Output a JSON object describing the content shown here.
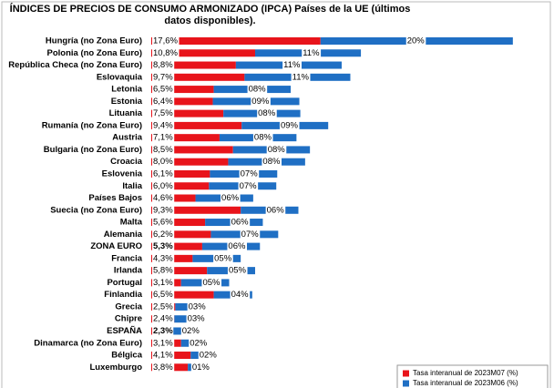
{
  "chart_data": {
    "type": "stacked-hbar",
    "title": "ÍNDICES DE PRECIOS DE CONSUMO ARMONIZADO (IPCA) Países de la UE (últimos datos disponibles).",
    "categories": [
      "Hungría (no Zona Euro)",
      "Polonia (no Zona Euro)",
      "República Checa (no Zona Euro)",
      "Eslovaquia",
      "Letonia",
      "Estonia",
      "Lituania",
      "Rumanía (no Zona Euro)",
      "Austria",
      "Bulgaria (no Zona Euro)",
      "Croacia",
      "Eslovenia",
      "Italia",
      "Países Bajos",
      "Suecia (no Zona Euro)",
      "Malta",
      "Alemania",
      "ZONA EURO",
      "Francia",
      "Irlanda",
      "Portugal",
      "Finlandia",
      "Grecia",
      "Chipre",
      "ESPAÑA",
      "Dinamarca (no Zona Euro)",
      "Bélgica",
      "Luxemburgo"
    ],
    "series": [
      {
        "name": "Tasa interanual de 2023M07 (%)",
        "color": "#e8141b",
        "values": [
          17.6,
          10.8,
          8.8,
          9.7,
          6.5,
          6.4,
          7.5,
          9.4,
          7.1,
          8.5,
          8.0,
          6.1,
          6.0,
          4.6,
          9.3,
          5.6,
          6.2,
          5.3,
          4.3,
          5.8,
          3.1,
          6.5,
          2.5,
          2.4,
          2.3,
          3.1,
          4.1,
          3.8
        ],
        "value_labels": [
          "17,6%",
          "10,8%",
          "8,8%",
          "9,7%",
          "6,5%",
          "6,4%",
          "7,5%",
          "9,4%",
          "7,1%",
          "8,5%",
          "8,0%",
          "6,1%",
          "6,0%",
          "4,6%",
          "9,3%",
          "5,6%",
          "6,2%",
          "5,3%",
          "4,3%",
          "5,8%",
          "3,1%",
          "6,5%",
          "2,5%",
          "2,4%",
          "2,3%",
          "3,1%",
          "4,1%",
          "3,8%"
        ]
      },
      {
        "name": "Tasa interanual de 2023M06 (%)",
        "color": "#1f6fc4",
        "values": [
          20,
          11,
          11,
          11,
          8,
          9,
          8,
          9,
          8,
          8,
          8,
          7,
          7,
          6,
          6,
          6,
          7,
          6,
          5,
          5,
          5,
          4,
          3,
          3,
          2,
          2,
          2,
          1
        ],
        "value_labels": [
          "20%",
          "11%",
          "11%",
          "11%",
          "08%",
          "09%",
          "08%",
          "09%",
          "08%",
          "08%",
          "08%",
          "07%",
          "07%",
          "06%",
          "06%",
          "06%",
          "07%",
          "06%",
          "05%",
          "05%",
          "05%",
          "04%",
          "03%",
          "03%",
          "02%",
          "02%",
          "02%",
          "01%"
        ]
      }
    ],
    "xlim": [
      0,
      41.5
    ]
  }
}
